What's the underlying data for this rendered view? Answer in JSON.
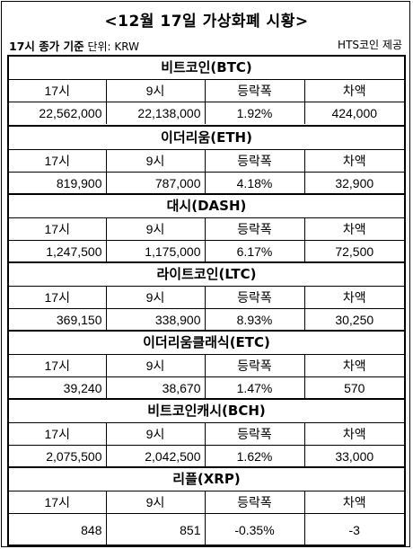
{
  "title": "<12월 17일 가상화폐 시황>",
  "subtitle_bold": "17시 종가 기준",
  "subtitle_unit": "단위: KRW",
  "source": "HTS코인 제공",
  "columns": [
    "17시",
    "9시",
    "등락폭",
    "차액"
  ],
  "coins": [
    {
      "name": "비트코인(BTC)",
      "values": [
        "22,562,000",
        "22,138,000",
        "1.92%",
        "424,000"
      ]
    },
    {
      "name": "이더리움(ETH)",
      "values": [
        "819,900",
        "787,000",
        "4.18%",
        "32,900"
      ]
    },
    {
      "name": "대시(DASH)",
      "values": [
        "1,247,500",
        "1,175,000",
        "6.17%",
        "72,500"
      ]
    },
    {
      "name": "라이트코인(LTC)",
      "values": [
        "369,150",
        "338,900",
        "8.93%",
        "30,250"
      ]
    },
    {
      "name": "이더리움클래식(ETC)",
      "values": [
        "39,240",
        "38,670",
        "1.47%",
        "570"
      ]
    },
    {
      "name": "비트코인캐시(BCH)",
      "values": [
        "2,075,500",
        "2,042,500",
        "1.62%",
        "33,000"
      ]
    },
    {
      "name": "리플(XRP)",
      "values": [
        "848",
        "851",
        "-0.35%",
        "-3"
      ]
    }
  ]
}
